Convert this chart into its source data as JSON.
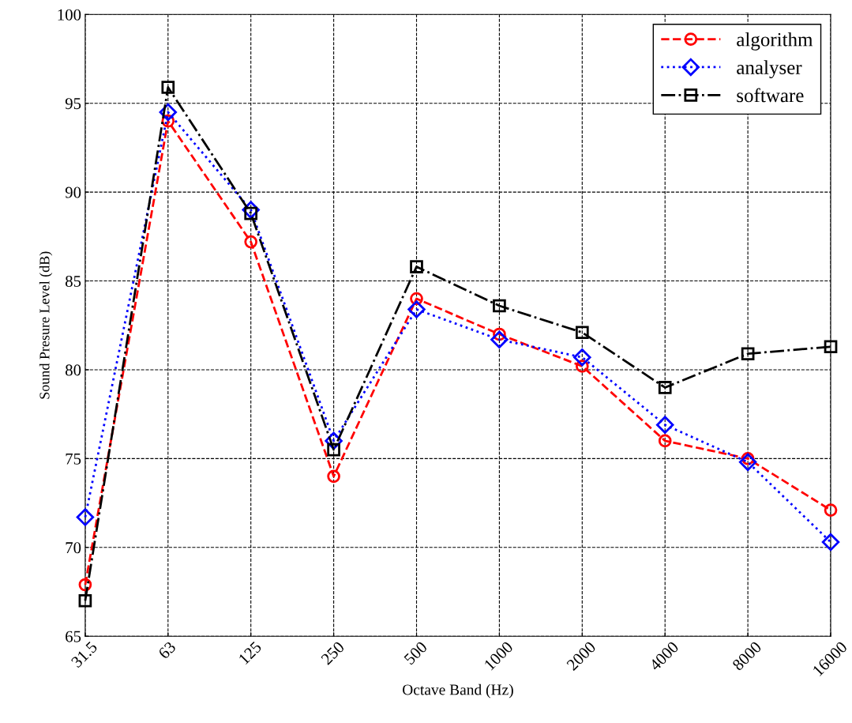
{
  "chart_data": {
    "type": "line",
    "xlabel": "Octave Band (Hz)",
    "ylabel": "Sound Presure Level (dB)",
    "categories": [
      "31.5",
      "63",
      "125",
      "250",
      "500",
      "1000",
      "2000",
      "4000",
      "8000",
      "16000"
    ],
    "series": [
      {
        "name": "algorithm",
        "color": "#ff0000",
        "marker": "circle",
        "line_style": "dashed",
        "values": [
          67.9,
          94.0,
          87.2,
          74.0,
          84.0,
          82.0,
          80.2,
          76.0,
          75.0,
          72.1
        ]
      },
      {
        "name": "analyser",
        "color": "#0000ff",
        "marker": "diamond",
        "line_style": "dotted",
        "values": [
          71.7,
          94.5,
          89.0,
          76.0,
          83.4,
          81.7,
          80.7,
          76.9,
          74.8,
          70.3
        ]
      },
      {
        "name": "software",
        "color": "#000000",
        "marker": "square",
        "line_style": "dashdot",
        "values": [
          67.0,
          95.9,
          88.8,
          75.5,
          85.8,
          83.6,
          82.1,
          79.0,
          80.9,
          81.3
        ]
      }
    ],
    "ylim": [
      65,
      100
    ],
    "yticks": [
      65,
      70,
      75,
      80,
      85,
      90,
      95,
      100
    ],
    "grid": true,
    "legend": "top right"
  }
}
